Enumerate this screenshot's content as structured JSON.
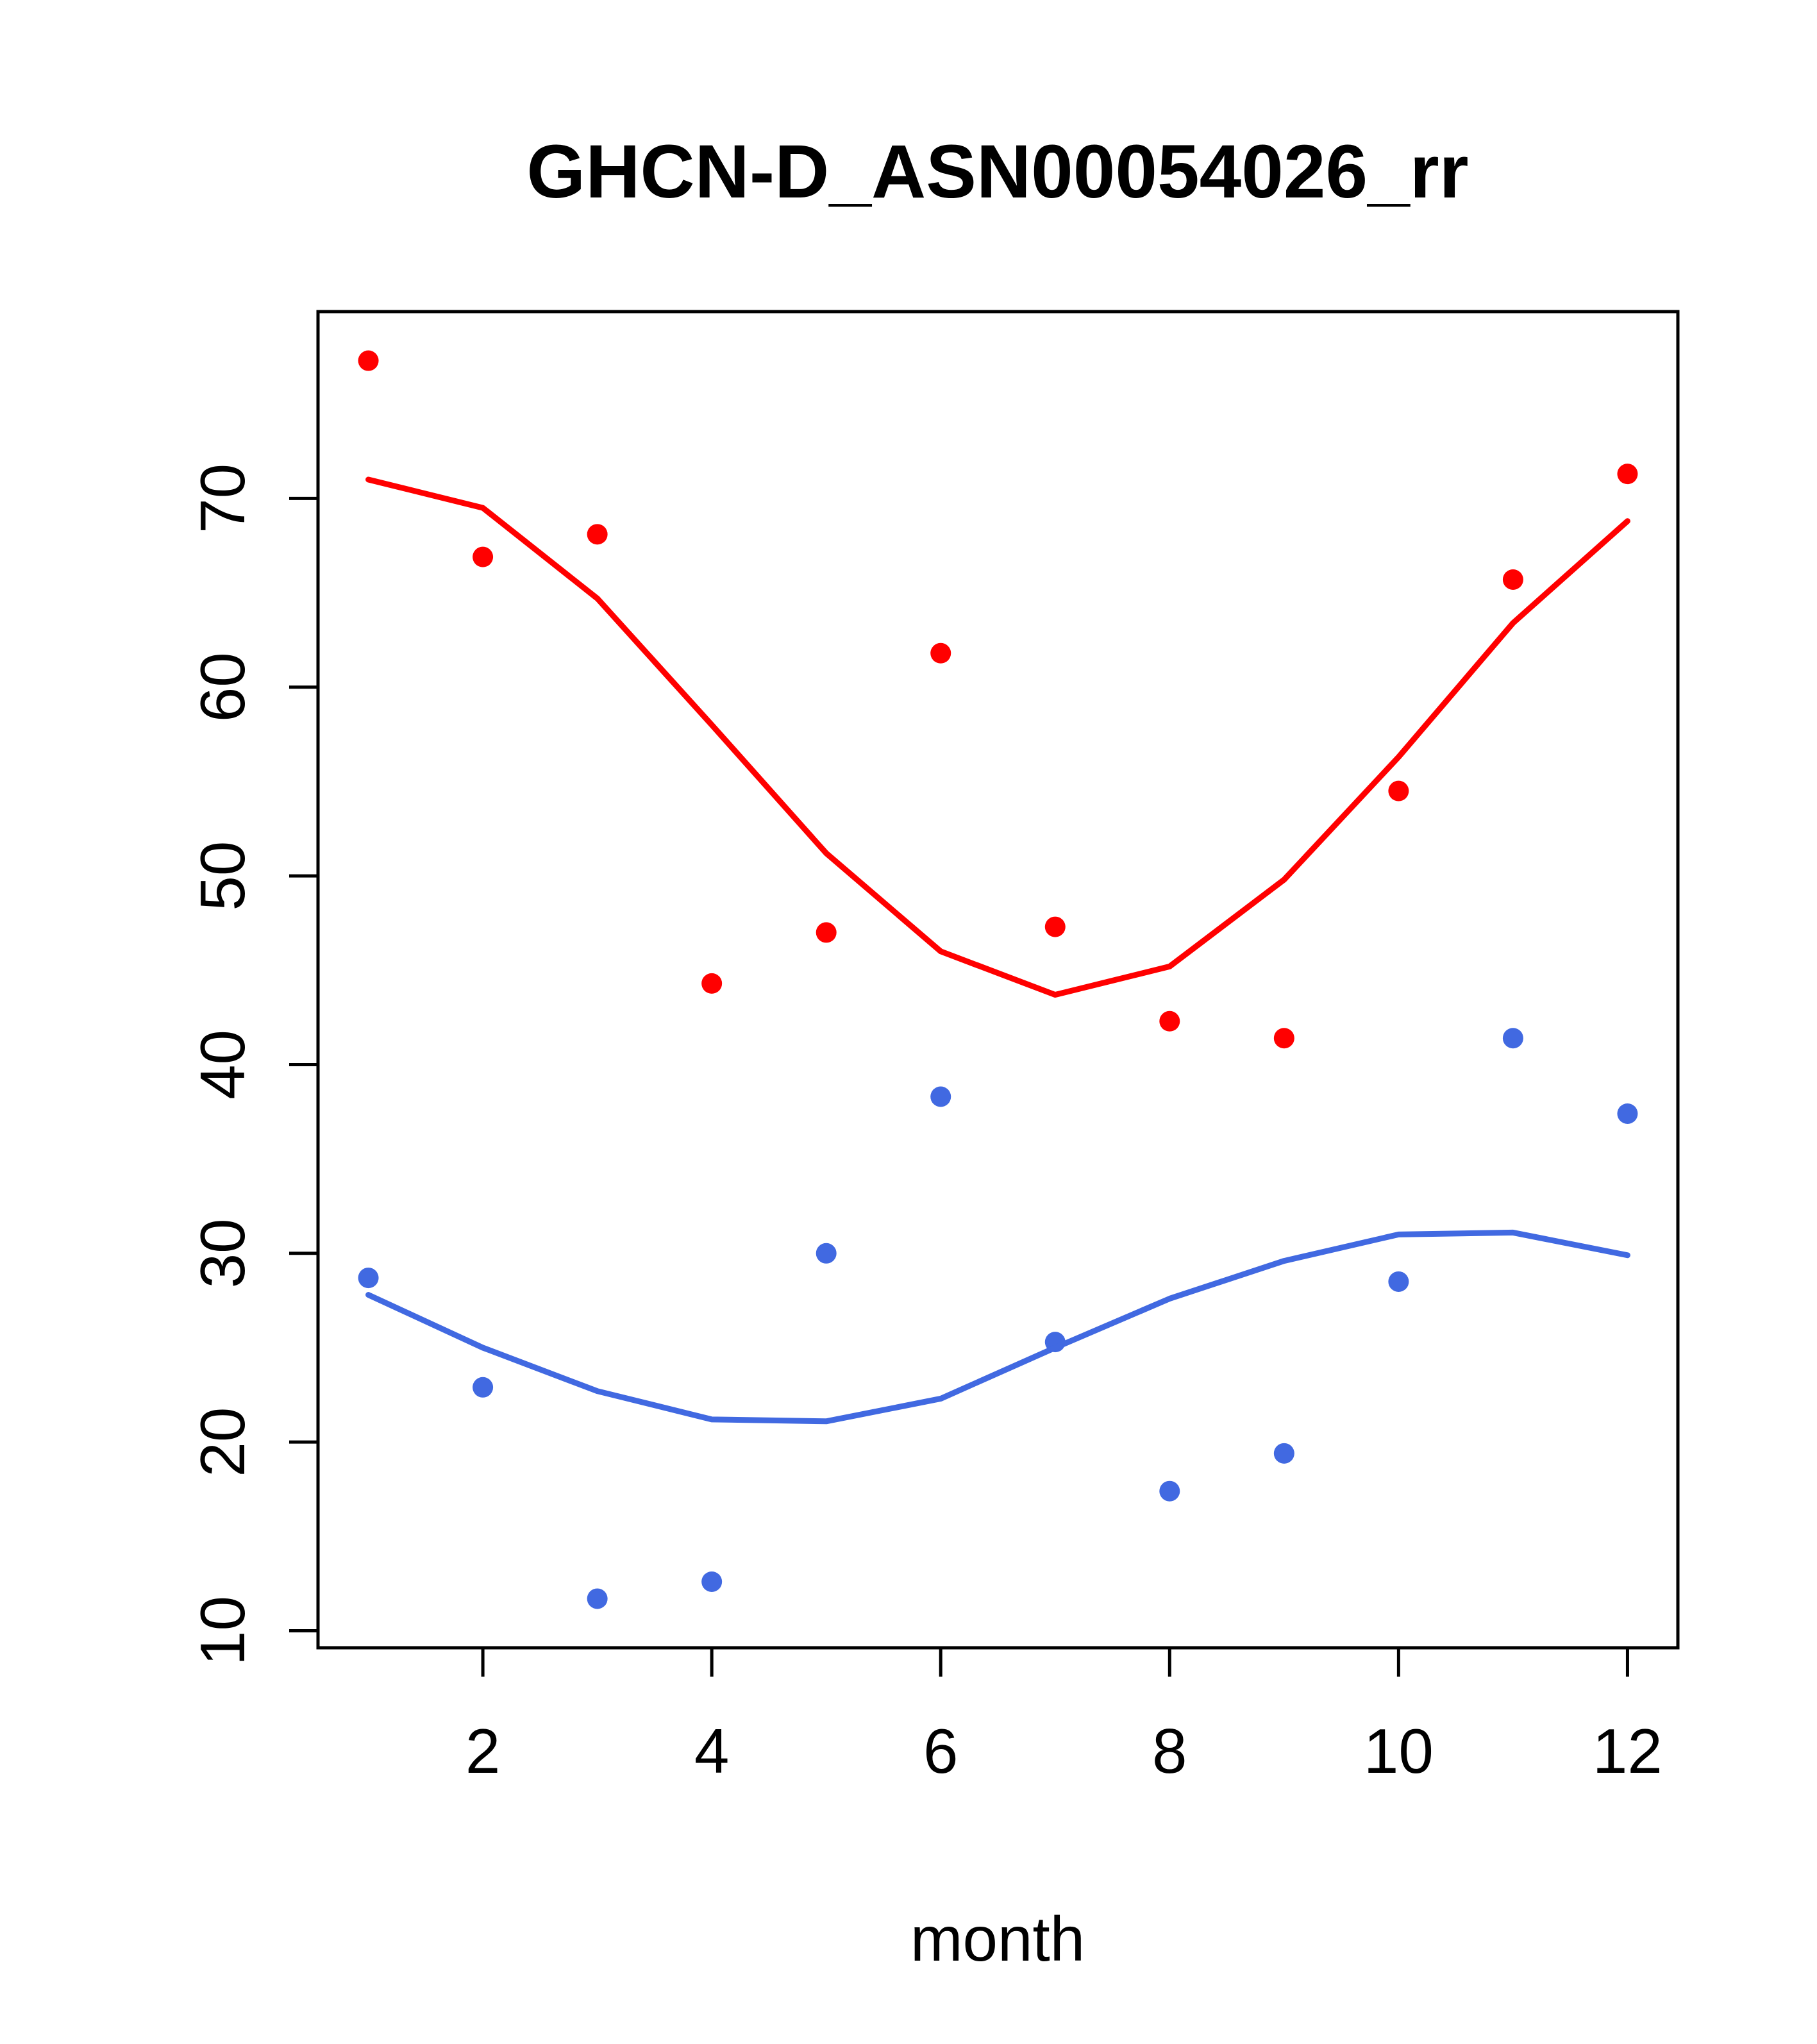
{
  "chart_data": {
    "type": "scatter",
    "title": "GHCN-D_ASN00054026_rr",
    "xlabel": "month",
    "ylabel": "",
    "grid": false,
    "legend": "none",
    "background_color": "#ffffff",
    "axis_color": "#000000",
    "x": [
      1,
      2,
      3,
      4,
      5,
      6,
      7,
      8,
      9,
      10,
      11,
      12
    ],
    "xlim": [
      0.56,
      12.44
    ],
    "ylim": [
      9.1,
      79.9
    ],
    "x_ticks": [
      2,
      4,
      6,
      8,
      10,
      12
    ],
    "y_ticks": [
      10,
      20,
      30,
      40,
      50,
      60,
      70
    ],
    "series": [
      {
        "name": "red-points",
        "type": "points",
        "color": "#FF0000",
        "values": [
          77.3,
          66.9,
          68.1,
          44.3,
          47.0,
          61.8,
          47.3,
          42.3,
          41.4,
          54.5,
          65.7,
          71.3
        ]
      },
      {
        "name": "red-smooth-line",
        "type": "line",
        "color": "#FF0000",
        "values": [
          71.0,
          69.5,
          64.7,
          58.0,
          51.2,
          46.0,
          43.7,
          45.2,
          49.8,
          56.3,
          63.4,
          68.8
        ]
      },
      {
        "name": "blue-points",
        "type": "points",
        "color": "#4169E1",
        "values": [
          28.7,
          22.9,
          11.7,
          12.6,
          30.0,
          38.3,
          25.3,
          17.4,
          19.4,
          28.5,
          41.4,
          37.4
        ]
      },
      {
        "name": "blue-smooth-line",
        "type": "line",
        "color": "#4169E1",
        "values": [
          27.8,
          25.0,
          22.7,
          21.2,
          21.1,
          22.3,
          25.0,
          27.6,
          29.6,
          31.0,
          31.1,
          29.9
        ]
      }
    ]
  }
}
